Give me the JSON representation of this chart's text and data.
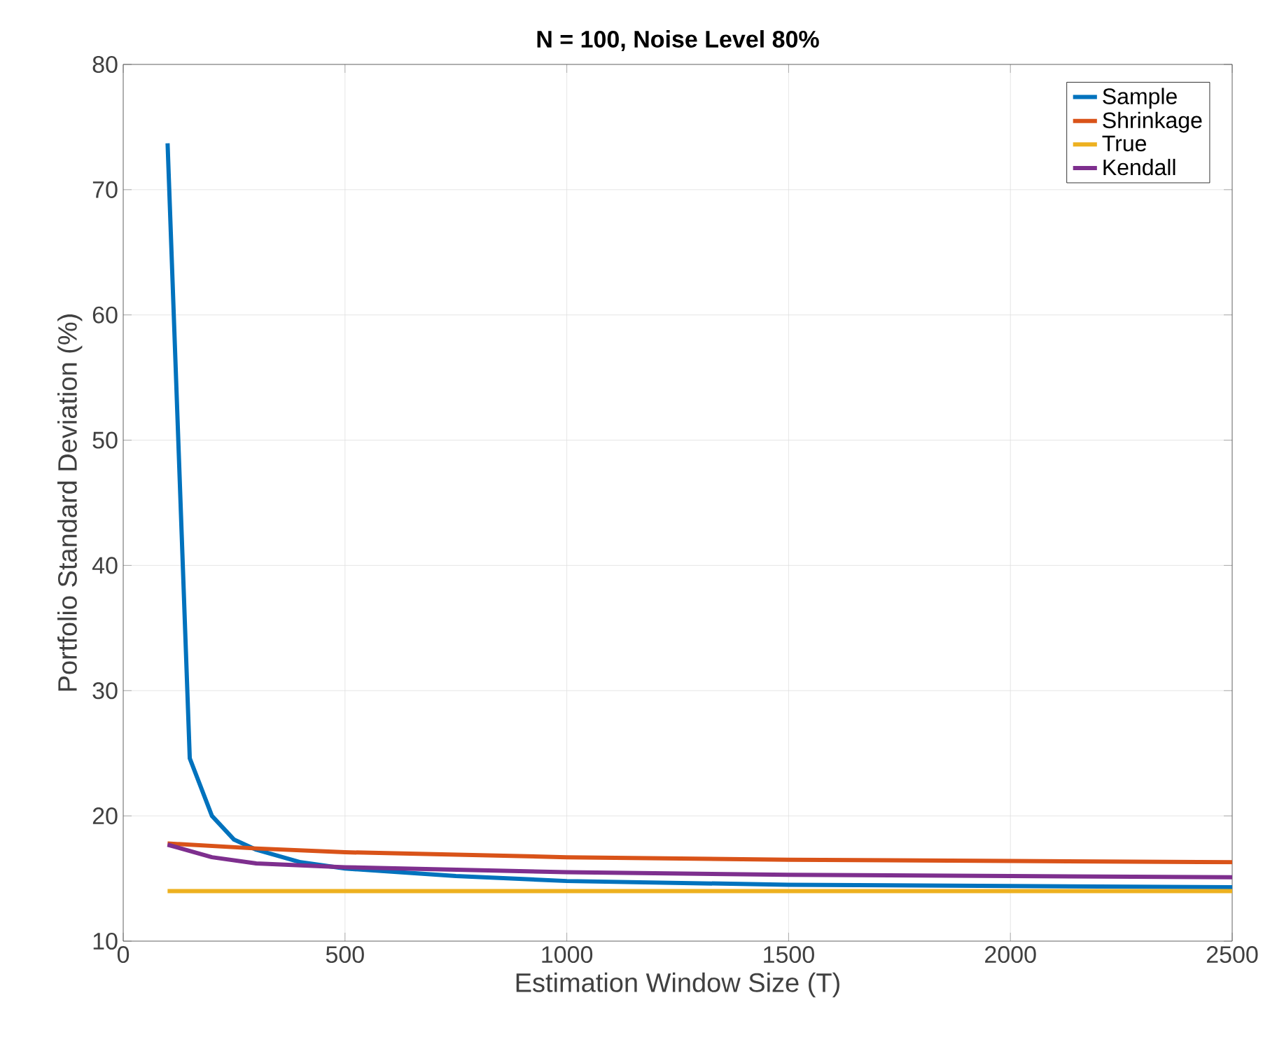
{
  "chart_data": {
    "type": "line",
    "title": "N = 100, Noise Level 80%",
    "xlabel": "Estimation Window Size (T)",
    "ylabel": "Portfolio Standard Deviation (%)",
    "xlim": [
      0,
      2500
    ],
    "ylim": [
      10,
      80
    ],
    "xticks": [
      0,
      500,
      1000,
      1500,
      2000,
      2500
    ],
    "yticks": [
      10,
      20,
      30,
      40,
      50,
      60,
      70,
      80
    ],
    "grid": true,
    "legend": "top right",
    "series": [
      {
        "name": "Sample",
        "color": "#0072bd",
        "x": [
          100,
          150,
          200,
          250,
          300,
          400,
          500,
          750,
          1000,
          1500,
          2000,
          2500
        ],
        "values": [
          73.7,
          24.6,
          20.0,
          18.1,
          17.3,
          16.3,
          15.8,
          15.2,
          14.8,
          14.5,
          14.4,
          14.3
        ]
      },
      {
        "name": "Shrinkage",
        "color": "#d95319",
        "x": [
          100,
          300,
          500,
          1000,
          1500,
          2000,
          2500
        ],
        "values": [
          17.8,
          17.4,
          17.1,
          16.7,
          16.5,
          16.4,
          16.3
        ]
      },
      {
        "name": "True",
        "color": "#edb120",
        "x": [
          100,
          2500
        ],
        "values": [
          14.0,
          14.0
        ]
      },
      {
        "name": "Kendall",
        "color": "#7e2f8e",
        "x": [
          100,
          200,
          300,
          500,
          1000,
          1500,
          2000,
          2500
        ],
        "values": [
          17.7,
          16.7,
          16.2,
          15.9,
          15.5,
          15.3,
          15.2,
          15.1
        ]
      }
    ]
  }
}
